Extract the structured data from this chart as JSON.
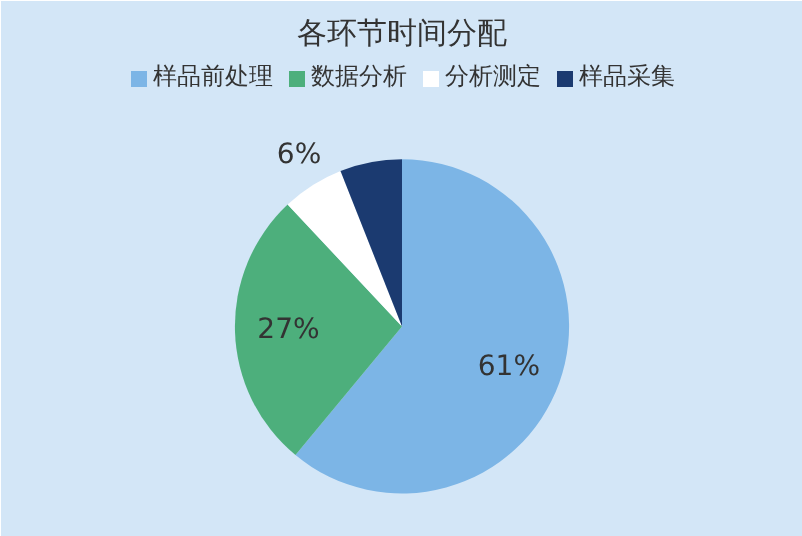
{
  "chart_data": {
    "type": "pie",
    "title": "各环节时间分配",
    "categories": [
      "样品前处理",
      "数据分析",
      "分析测定",
      "样品采集"
    ],
    "values": [
      61,
      27,
      6,
      6
    ],
    "value_labels": [
      "61%",
      "27%",
      "6%",
      null
    ],
    "colors": [
      "#7cb5e6",
      "#4daf7c",
      "#ffffff",
      "#1b3a70"
    ],
    "legend": "top"
  }
}
